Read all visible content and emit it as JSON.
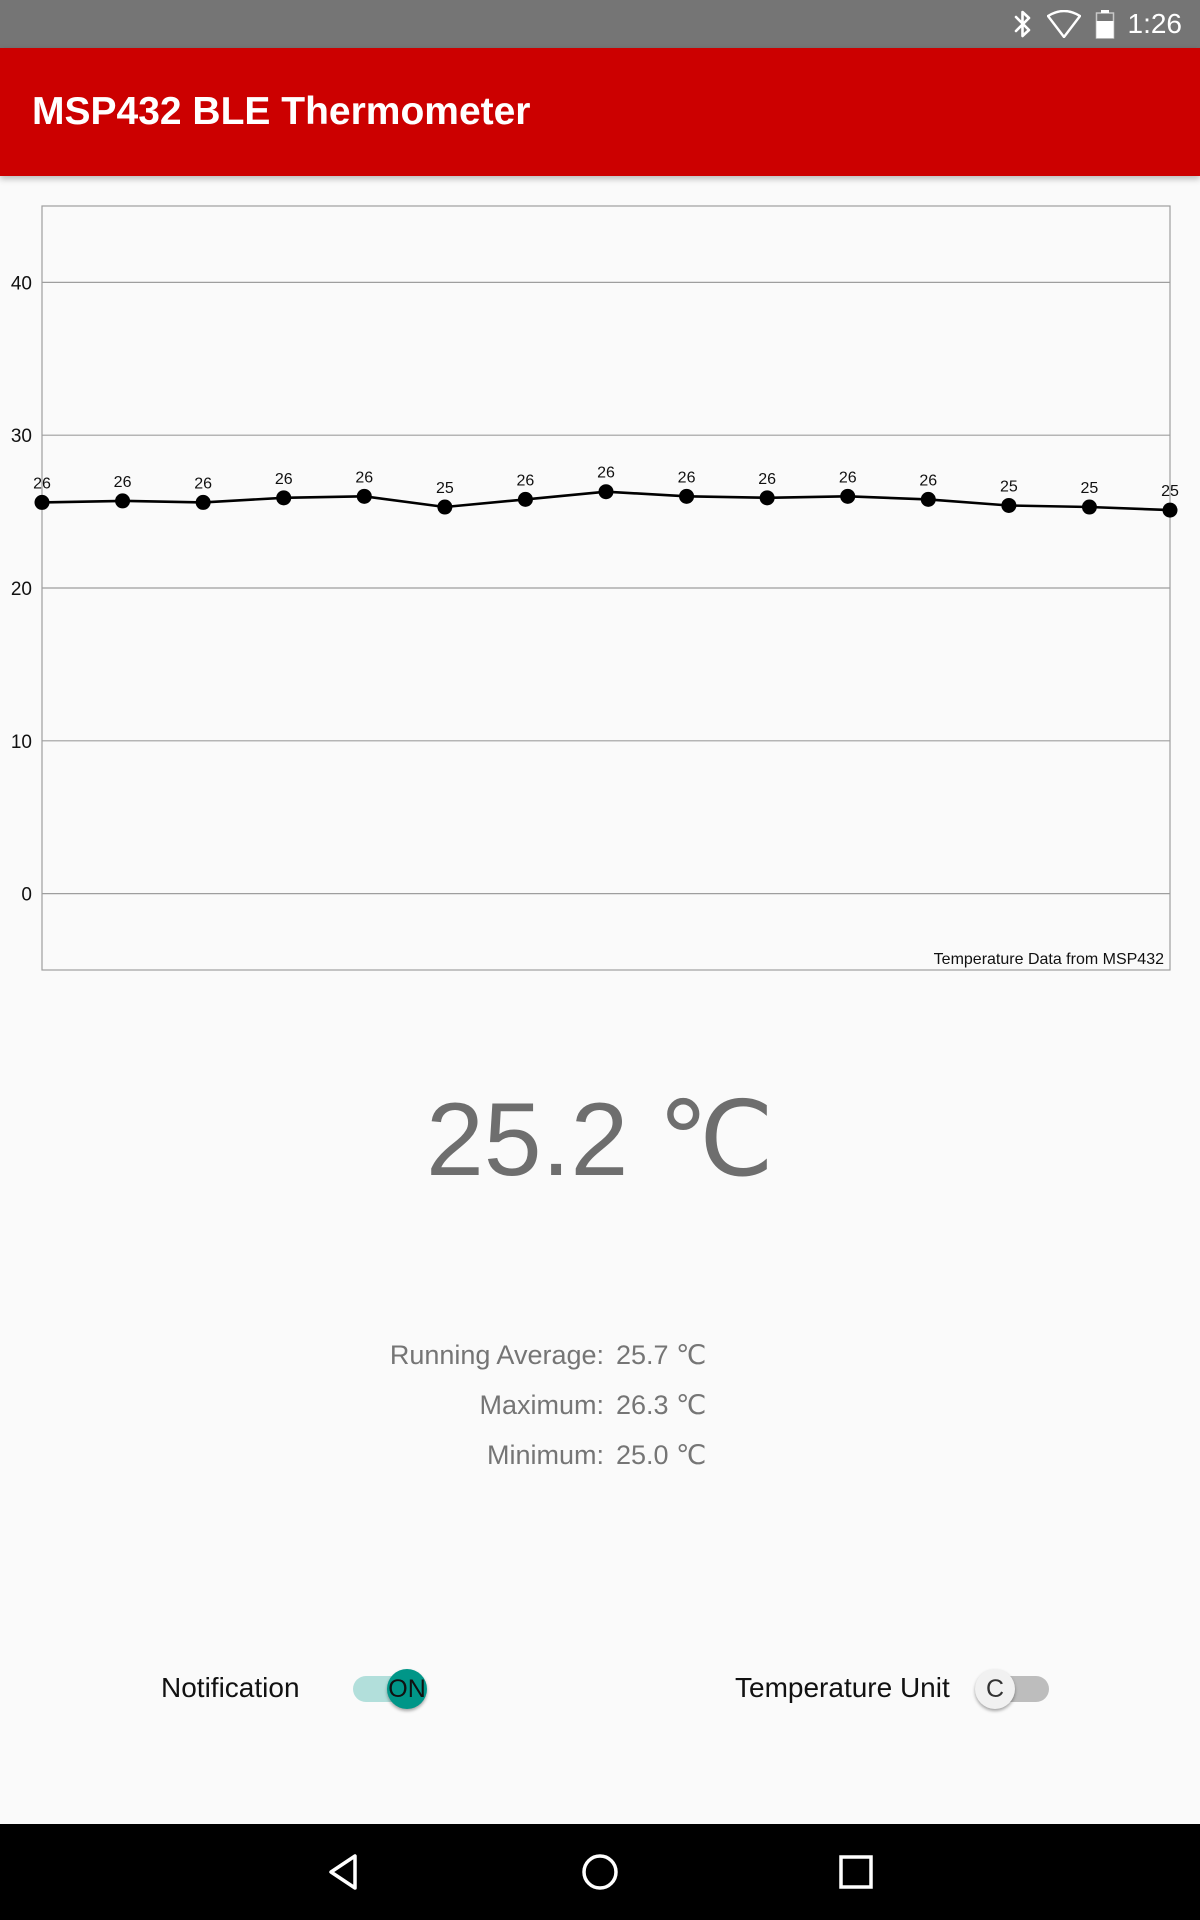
{
  "status_bar": {
    "time": "1:26",
    "icons": [
      "bluetooth-icon",
      "wifi-icon",
      "battery-icon"
    ]
  },
  "app_bar": {
    "title": "MSP432 BLE Thermometer"
  },
  "chart_data": {
    "type": "line",
    "title": "",
    "xlabel": "",
    "ylabel": "",
    "description_label": "Temperature Data from MSP432",
    "ylim": [
      -5,
      45
    ],
    "y_ticks": [
      0,
      10,
      20,
      30,
      40
    ],
    "grid": true,
    "legend": "none",
    "series": [
      {
        "values": [
          25.6,
          25.7,
          25.6,
          25.9,
          26.0,
          25.3,
          25.8,
          26.3,
          26.0,
          25.9,
          26.0,
          25.8,
          25.4,
          25.3,
          25.1
        ],
        "labels": [
          "26",
          "26",
          "26",
          "26",
          "26",
          "25",
          "26",
          "26",
          "26",
          "26",
          "26",
          "26",
          "25",
          "25",
          "25"
        ],
        "color": "#000000"
      }
    ]
  },
  "current": {
    "value": "25.2 ℃"
  },
  "stats": [
    {
      "label": "Running Average:",
      "value": "25.7 ℃"
    },
    {
      "label": "Maximum:",
      "value": "26.3 ℃"
    },
    {
      "label": "Minimum:",
      "value": "25.0 ℃"
    }
  ],
  "controls": {
    "notification_label": "Notification",
    "notification_state": "ON",
    "unit_label": "Temperature Unit",
    "unit_state": "C"
  },
  "nav": [
    "back-icon",
    "home-icon",
    "recents-icon"
  ],
  "colors": {
    "app_bar": "#cc0000",
    "status_bar": "#757575",
    "switch_on": "#009688"
  }
}
